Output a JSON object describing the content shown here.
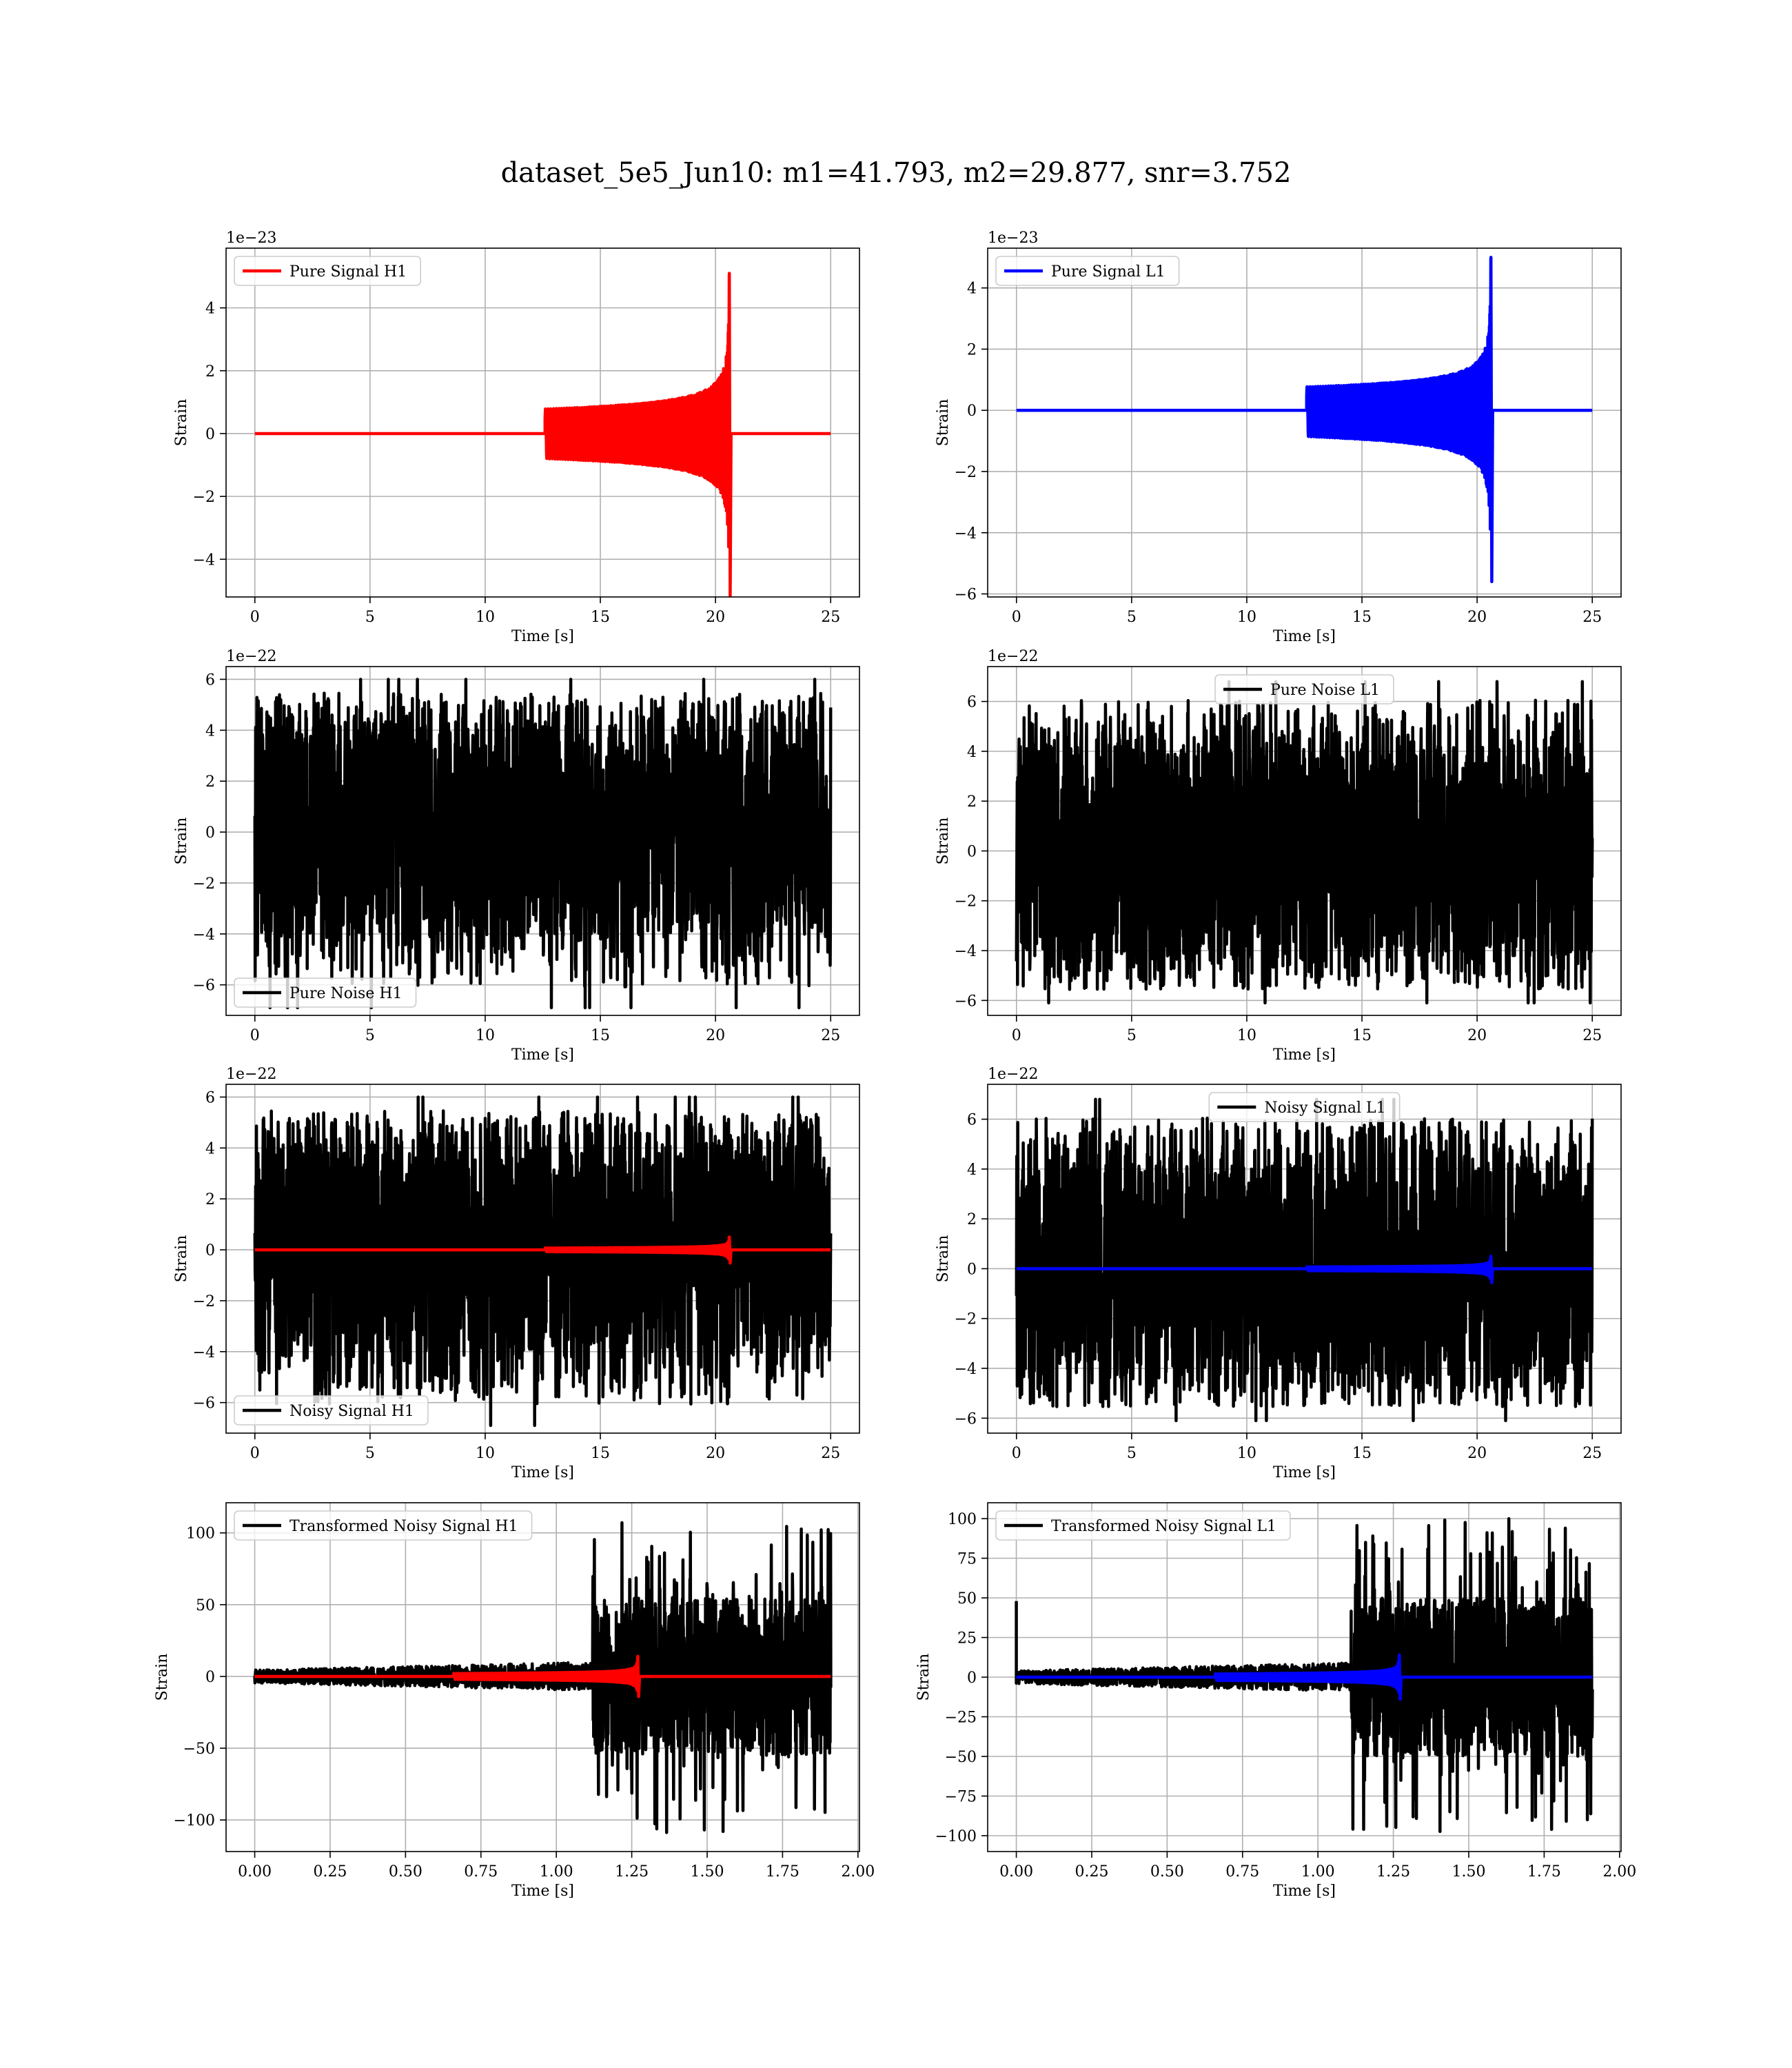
{
  "figure": {
    "title": "dataset_5e5_Jun10: m1=41.793, m2=29.877, snr=3.752"
  },
  "chart_data": [
    {
      "type": "line",
      "id": "pure-signal-h1",
      "xlabel": "Time [s]",
      "ylabel": "Strain",
      "offset_text": "1e−23",
      "xlim": [
        -1.25,
        26.25
      ],
      "ylim": [
        -5.2,
        5.9
      ],
      "xticks": [
        0,
        5,
        10,
        15,
        20,
        25
      ],
      "xtick_labels": [
        "0",
        "5",
        "10",
        "15",
        "20",
        "25"
      ],
      "yticks": [
        -4,
        -2,
        0,
        2,
        4
      ],
      "ytick_labels": [
        "−4",
        "−2",
        "0",
        "2",
        "4"
      ],
      "grid": true,
      "legend_position": "upper left",
      "series": [
        {
          "name": "Pure Signal H1",
          "color": "#ff0000",
          "kind": "chirp",
          "x_range": [
            0,
            25
          ],
          "merger_time": 20.6,
          "peak_amplitude": 5.1,
          "min_amplitude": -5.2
        }
      ]
    },
    {
      "type": "line",
      "id": "pure-signal-l1",
      "xlabel": "Time [s]",
      "ylabel": "Strain",
      "offset_text": "1e−23",
      "xlim": [
        -1.25,
        26.25
      ],
      "ylim": [
        -6.1,
        5.3
      ],
      "xticks": [
        0,
        5,
        10,
        15,
        20,
        25
      ],
      "xtick_labels": [
        "0",
        "5",
        "10",
        "15",
        "20",
        "25"
      ],
      "yticks": [
        -6,
        -4,
        -2,
        0,
        2,
        4
      ],
      "ytick_labels": [
        "−6",
        "−4",
        "−2",
        "0",
        "2",
        "4"
      ],
      "grid": true,
      "legend_position": "upper left",
      "series": [
        {
          "name": "Pure Signal L1",
          "color": "#0000ff",
          "kind": "chirp",
          "x_range": [
            0,
            25
          ],
          "merger_time": 20.6,
          "peak_amplitude": 5.0,
          "min_amplitude": -5.6
        }
      ]
    },
    {
      "type": "line",
      "id": "pure-noise-h1",
      "xlabel": "Time [s]",
      "ylabel": "Strain",
      "offset_text": "1e−22",
      "xlim": [
        -1.25,
        26.25
      ],
      "ylim": [
        -7.2,
        6.5
      ],
      "xticks": [
        0,
        5,
        10,
        15,
        20,
        25
      ],
      "xtick_labels": [
        "0",
        "5",
        "10",
        "15",
        "20",
        "25"
      ],
      "yticks": [
        -6,
        -4,
        -2,
        0,
        2,
        4,
        6
      ],
      "ytick_labels": [
        "−6",
        "−4",
        "−2",
        "0",
        "2",
        "4",
        "6"
      ],
      "grid": true,
      "legend_position": "lower left",
      "series": [
        {
          "name": "Pure Noise H1",
          "color": "#000000",
          "kind": "noise",
          "x_range": [
            0,
            25
          ],
          "core_amplitude": 4.2,
          "max": 6.0,
          "min": -6.9
        }
      ]
    },
    {
      "type": "line",
      "id": "pure-noise-l1",
      "xlabel": "Time [s]",
      "ylabel": "Strain",
      "offset_text": "1e−22",
      "xlim": [
        -1.25,
        26.25
      ],
      "ylim": [
        -6.6,
        7.4
      ],
      "xticks": [
        0,
        5,
        10,
        15,
        20,
        25
      ],
      "xtick_labels": [
        "0",
        "5",
        "10",
        "15",
        "20",
        "25"
      ],
      "yticks": [
        -6,
        -4,
        -2,
        0,
        2,
        4,
        6
      ],
      "ytick_labels": [
        "−6",
        "−4",
        "−2",
        "0",
        "2",
        "4",
        "6"
      ],
      "grid": true,
      "legend_position": "upper center",
      "series": [
        {
          "name": "Pure Noise L1",
          "color": "#000000",
          "kind": "noise",
          "x_range": [
            0,
            25
          ],
          "core_amplitude": 4.3,
          "max": 6.8,
          "min": -6.1
        }
      ]
    },
    {
      "type": "line",
      "id": "noisy-signal-h1",
      "xlabel": "Time [s]",
      "ylabel": "Strain",
      "offset_text": "1e−22",
      "xlim": [
        -1.25,
        26.25
      ],
      "ylim": [
        -7.2,
        6.5
      ],
      "xticks": [
        0,
        5,
        10,
        15,
        20,
        25
      ],
      "xtick_labels": [
        "0",
        "5",
        "10",
        "15",
        "20",
        "25"
      ],
      "yticks": [
        -6,
        -4,
        -2,
        0,
        2,
        4,
        6
      ],
      "ytick_labels": [
        "−6",
        "−4",
        "−2",
        "0",
        "2",
        "4",
        "6"
      ],
      "grid": true,
      "legend_position": "lower left",
      "series": [
        {
          "name": "Noisy Signal H1",
          "color": "#000000",
          "kind": "noise",
          "x_range": [
            0,
            25
          ],
          "core_amplitude": 4.2,
          "max": 6.0,
          "min": -6.9
        },
        {
          "name": "",
          "color": "#ff0000",
          "kind": "chirp",
          "x_range": [
            0,
            25
          ],
          "merger_time": 20.6,
          "peak_amplitude": 0.5,
          "min_amplitude": -0.52
        }
      ]
    },
    {
      "type": "line",
      "id": "noisy-signal-l1",
      "xlabel": "Time [s]",
      "ylabel": "Strain",
      "offset_text": "1e−22",
      "xlim": [
        -1.25,
        26.25
      ],
      "ylim": [
        -6.6,
        7.4
      ],
      "xticks": [
        0,
        5,
        10,
        15,
        20,
        25
      ],
      "xtick_labels": [
        "0",
        "5",
        "10",
        "15",
        "20",
        "25"
      ],
      "yticks": [
        -6,
        -4,
        -2,
        0,
        2,
        4,
        6
      ],
      "ytick_labels": [
        "−6",
        "−4",
        "−2",
        "0",
        "2",
        "4",
        "6"
      ],
      "grid": true,
      "legend_position": "upper center",
      "series": [
        {
          "name": "Noisy Signal L1",
          "color": "#000000",
          "kind": "noise",
          "x_range": [
            0,
            25
          ],
          "core_amplitude": 4.3,
          "max": 6.8,
          "min": -6.1
        },
        {
          "name": "",
          "color": "#0000ff",
          "kind": "chirp",
          "x_range": [
            0,
            25
          ],
          "merger_time": 20.6,
          "peak_amplitude": 0.5,
          "min_amplitude": -0.56
        }
      ]
    },
    {
      "type": "line",
      "id": "transformed-noisy-signal-h1",
      "xlabel": "Time [s]",
      "ylabel": "Strain",
      "offset_text": "",
      "xlim": [
        -0.095,
        2.005
      ],
      "ylim": [
        -122,
        121
      ],
      "xticks": [
        0,
        0.25,
        0.5,
        0.75,
        1.0,
        1.25,
        1.5,
        1.75,
        2.0
      ],
      "xtick_labels": [
        "0.00",
        "0.25",
        "0.50",
        "0.75",
        "1.00",
        "1.25",
        "1.50",
        "1.75",
        "2.00"
      ],
      "yticks": [
        -100,
        -50,
        0,
        50,
        100
      ],
      "ytick_labels": [
        "−100",
        "−50",
        "0",
        "50",
        "100"
      ],
      "grid": true,
      "legend_position": "upper left",
      "series": [
        {
          "name": "Transformed Noisy Signal H1",
          "color": "#000000",
          "kind": "transformed",
          "x_range": [
            0,
            1.91
          ],
          "split_time": 1.12,
          "pre_amplitude": 10,
          "post_amplitude": 55,
          "max": 109,
          "min": -111
        },
        {
          "name": "",
          "color": "#ff0000",
          "kind": "chirp",
          "x_range": [
            0,
            1.91
          ],
          "merger_time": 1.27,
          "peak_amplitude": 14,
          "min_amplitude": -14
        }
      ]
    },
    {
      "type": "line",
      "id": "transformed-noisy-signal-l1",
      "xlabel": "Time [s]",
      "ylabel": "Strain",
      "offset_text": "",
      "xlim": [
        -0.095,
        2.005
      ],
      "ylim": [
        -110,
        110
      ],
      "xticks": [
        0,
        0.25,
        0.5,
        0.75,
        1.0,
        1.25,
        1.5,
        1.75,
        2.0
      ],
      "xtick_labels": [
        "0.00",
        "0.25",
        "0.50",
        "0.75",
        "1.00",
        "1.25",
        "1.50",
        "1.75",
        "2.00"
      ],
      "yticks": [
        -100,
        -75,
        -50,
        -25,
        0,
        25,
        50,
        75,
        100
      ],
      "ytick_labels": [
        "−100",
        "−75",
        "−50",
        "−25",
        "0",
        "25",
        "50",
        "75",
        "100"
      ],
      "grid": true,
      "legend_position": "upper left",
      "series": [
        {
          "name": "Transformed Noisy Signal L1",
          "color": "#000000",
          "kind": "transformed",
          "x_range": [
            0,
            1.91
          ],
          "split_time": 1.11,
          "pre_amplitude": 9,
          "post_amplitude": 50,
          "max": 100,
          "min": -100,
          "start_spike": 48
        },
        {
          "name": "",
          "color": "#0000ff",
          "kind": "chirp",
          "x_range": [
            0,
            1.91
          ],
          "merger_time": 1.27,
          "peak_amplitude": 14,
          "min_amplitude": -14
        }
      ]
    }
  ]
}
